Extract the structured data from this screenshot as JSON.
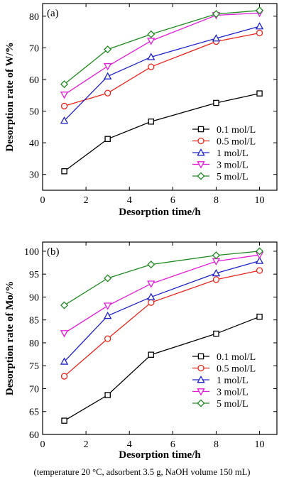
{
  "caption": "(temperature 20 °C, adsorbent 3.5 g, NaOH volume 150 mL)",
  "colors": {
    "0.1 mol/L": "#000000",
    "0.5 mol/L": "#e8241b",
    "1 mol/L": "#1d22c9",
    "3 mol/L": "#e21bd9",
    "5 mol/L": "#1f8a1f"
  },
  "chart_data": [
    {
      "type": "line",
      "panel_label": "(a)",
      "xlabel": "Desorption time/h",
      "ylabel": "Desorption rate of W/%",
      "xlim": [
        0,
        10.8
      ],
      "ylim": [
        25,
        84
      ],
      "xticks": [
        0,
        2,
        4,
        6,
        8,
        10
      ],
      "yticks": [
        30,
        40,
        50,
        60,
        70,
        80
      ],
      "grid": false,
      "legend_position": "bottom-right",
      "x": [
        1,
        3,
        5,
        8,
        10
      ],
      "series": [
        {
          "name": "0.1 mol/L",
          "marker": "square",
          "values": [
            31.0,
            41.2,
            46.7,
            52.6,
            55.6
          ]
        },
        {
          "name": "0.5 mol/L",
          "marker": "circle",
          "values": [
            51.6,
            55.7,
            64.0,
            72.0,
            74.7
          ]
        },
        {
          "name": "1 mol/L",
          "marker": "triangle-up",
          "values": [
            47.0,
            61.0,
            67.1,
            73.0,
            76.8
          ]
        },
        {
          "name": "3 mol/L",
          "marker": "triangle-down",
          "values": [
            55.2,
            64.2,
            72.2,
            80.3,
            81.0
          ]
        },
        {
          "name": "5 mol/L",
          "marker": "diamond",
          "values": [
            58.5,
            69.5,
            74.3,
            80.7,
            81.8
          ]
        }
      ]
    },
    {
      "type": "line",
      "panel_label": "(b)",
      "xlabel": "Desorption time/h",
      "ylabel": "Desorption rate of Mo/%",
      "xlim": [
        0,
        10.8
      ],
      "ylim": [
        60,
        102
      ],
      "xticks": [
        0,
        2,
        4,
        6,
        8,
        10
      ],
      "yticks": [
        60,
        65,
        70,
        75,
        80,
        85,
        90,
        95,
        100
      ],
      "grid": false,
      "legend_position": "bottom-right",
      "x": [
        1,
        3,
        5,
        8,
        10
      ],
      "series": [
        {
          "name": "0.1 mol/L",
          "marker": "square",
          "values": [
            63.0,
            68.6,
            77.4,
            82.0,
            85.7
          ]
        },
        {
          "name": "0.5 mol/L",
          "marker": "circle",
          "values": [
            72.7,
            80.9,
            88.8,
            93.8,
            95.8
          ]
        },
        {
          "name": "1 mol/L",
          "marker": "triangle-up",
          "values": [
            75.9,
            85.9,
            90.0,
            95.2,
            97.9
          ]
        },
        {
          "name": "3 mol/L",
          "marker": "triangle-down",
          "values": [
            82.1,
            88.1,
            92.9,
            97.8,
            99.2
          ]
        },
        {
          "name": "5 mol/L",
          "marker": "diamond",
          "values": [
            88.2,
            94.1,
            97.1,
            99.1,
            100.0
          ]
        }
      ]
    }
  ]
}
